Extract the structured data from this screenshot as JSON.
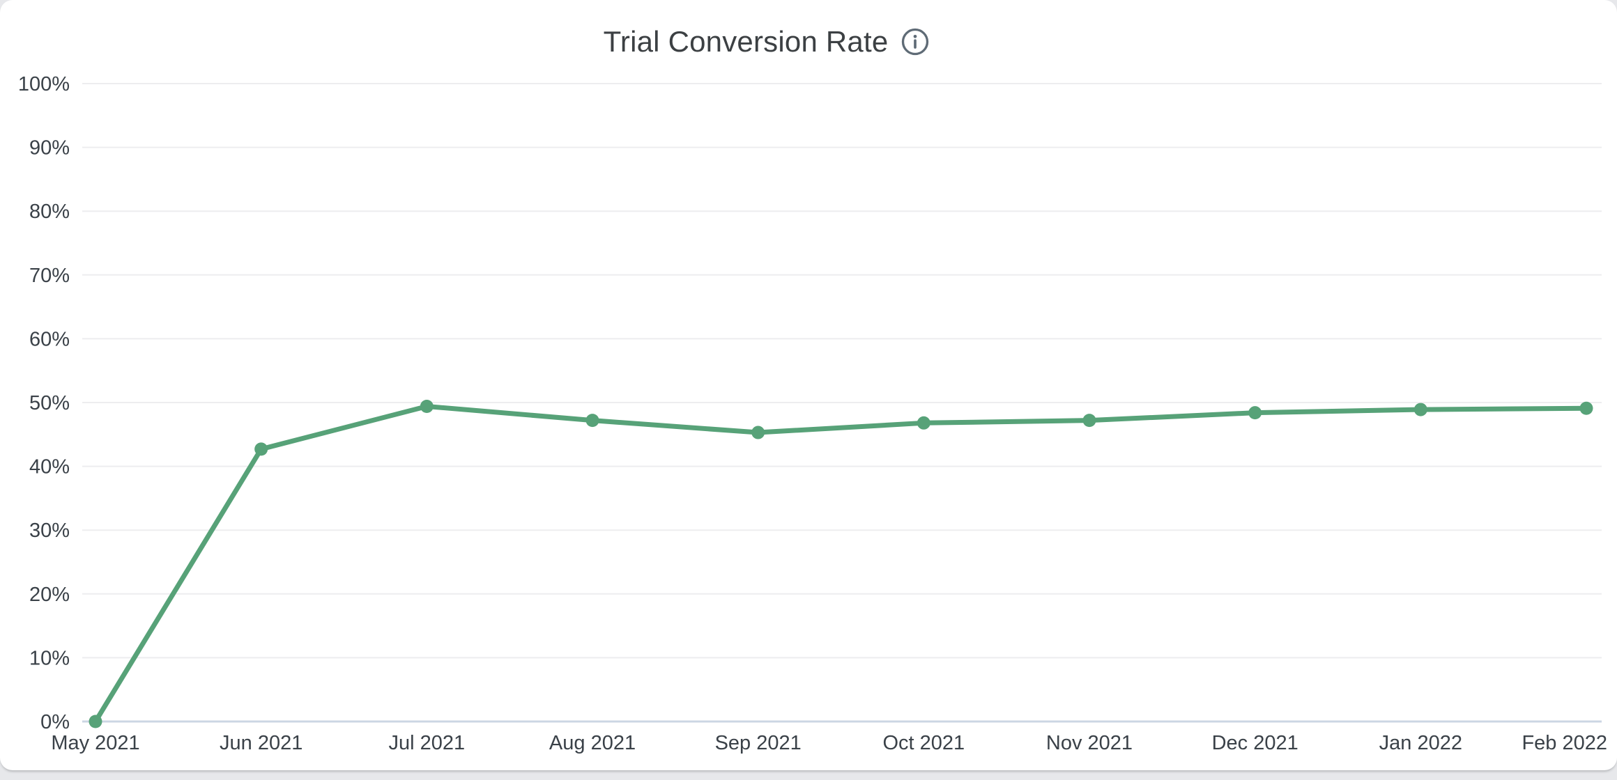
{
  "page": {
    "background": "#e7e8eb"
  },
  "card": {
    "background": "#ffffff"
  },
  "header": {
    "title": "Trial Conversion Rate",
    "info_icon": "info-circle-outline"
  },
  "chart_data": {
    "type": "line",
    "title": "Trial Conversion Rate",
    "categories": [
      "May 2021",
      "Jun 2021",
      "Jul 2021",
      "Aug 2021",
      "Sep 2021",
      "Oct 2021",
      "Nov 2021",
      "Dec 2021",
      "Jan 2022",
      "Feb 2022"
    ],
    "series": [
      {
        "name": "Trial Conversion Rate",
        "values": [
          0,
          42.7,
          49.4,
          47.2,
          45.3,
          46.8,
          47.2,
          48.4,
          48.9,
          49.1
        ]
      }
    ],
    "ylim": [
      0,
      100
    ],
    "ytick_step": 10,
    "yticks": [
      "0%",
      "10%",
      "20%",
      "30%",
      "40%",
      "50%",
      "60%",
      "70%",
      "80%",
      "90%",
      "100%"
    ],
    "ytick_format": "percent",
    "grid": "horizontal",
    "legend_position": "none",
    "marker": "circle",
    "colors": {
      "line": "#57a278",
      "marker": "#57a278",
      "grid": "#ededef",
      "baseline": "#ccd6e3",
      "title_text": "#3c4043",
      "tick_text": "#3a4148",
      "info_icon": "#5f6b76"
    }
  }
}
